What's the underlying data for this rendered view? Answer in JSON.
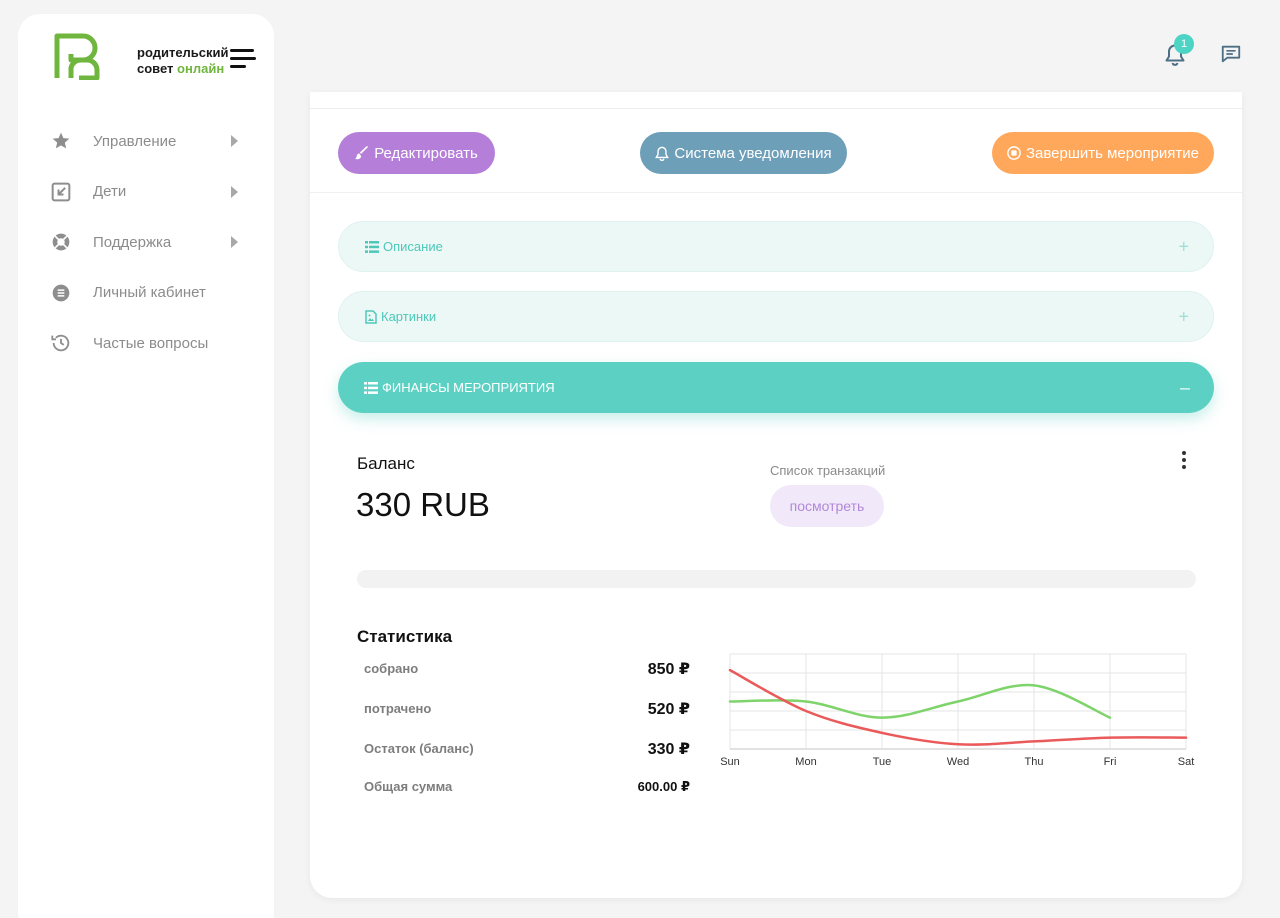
{
  "brand": {
    "line1": "родительский",
    "line2_a": "совет",
    "line2_b": "онлайн",
    "accent": "#6fb53e"
  },
  "sidebar": {
    "items": [
      {
        "label": "Управление",
        "icon": "star-icon",
        "has_arrow": true
      },
      {
        "label": "Дети",
        "icon": "collapse-icon",
        "has_arrow": true
      },
      {
        "label": "Поддержка",
        "icon": "lifebuoy-icon",
        "has_arrow": true
      },
      {
        "label": "Личный кабинет",
        "icon": "list-circle-icon",
        "has_arrow": false
      },
      {
        "label": "Частые вопросы",
        "icon": "history-icon",
        "has_arrow": false
      }
    ]
  },
  "header": {
    "notifications_count": "1"
  },
  "actions": {
    "edit": "Редактировать",
    "notify": "Система уведомления",
    "finish": "Завершить мероприятие"
  },
  "accordion": {
    "description": "Описание",
    "pictures": "Картинки",
    "finance": "ФИНАНСЫ МЕРОПРИЯТИЯ",
    "plus": "+",
    "minus": "–"
  },
  "finance": {
    "balance_title": "Баланс",
    "balance_value": "330 RUB",
    "tx_label": "Список транзакций",
    "tx_button": "посмотреть",
    "progress": 0
  },
  "stats": {
    "title": "Статистика",
    "rows": [
      {
        "label": "собрано",
        "value": "850 ₽"
      },
      {
        "label": "потрачено",
        "value": "520 ₽"
      },
      {
        "label": "Остаток (баланс)",
        "value": "330 ₽"
      },
      {
        "label": "Общая сумма",
        "value": "600.00 ₽"
      }
    ]
  },
  "chart_data": {
    "type": "line",
    "title": "",
    "xlabel": "",
    "ylabel": "",
    "categories": [
      "Sun",
      "Mon",
      "Tue",
      "Wed",
      "Thu",
      "Fri",
      "Sat"
    ],
    "ylim": [
      0,
      100
    ],
    "grid": true,
    "series": [
      {
        "name": "green",
        "color": "#7ed36a",
        "values": [
          50,
          50,
          33,
          50,
          67,
          33,
          null
        ]
      },
      {
        "name": "red",
        "color": "#ea5a5a",
        "values": [
          83,
          40,
          17,
          5,
          8,
          12,
          12
        ]
      }
    ]
  }
}
